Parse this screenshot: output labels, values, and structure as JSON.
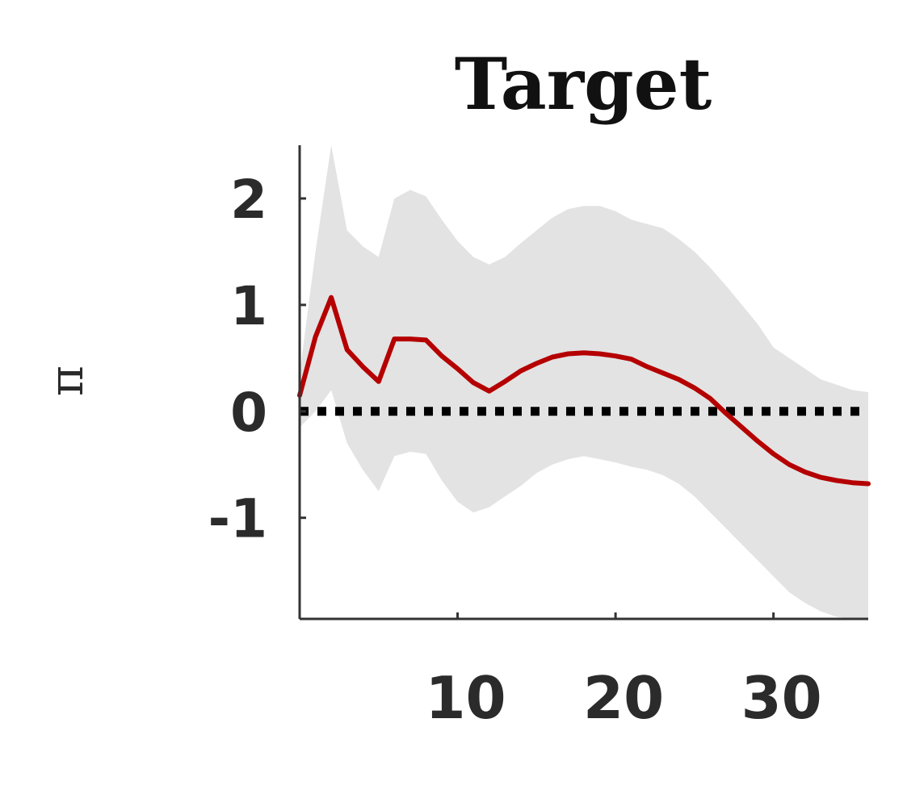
{
  "chart_data": {
    "type": "line",
    "title": "Target",
    "xlabel": "",
    "ylabel": "π",
    "xlim": [
      0,
      36
    ],
    "ylim": [
      -1.95,
      2.5
    ],
    "x_ticks": [
      10,
      20,
      30
    ],
    "x_tick_labels": [
      "10",
      "20",
      "30"
    ],
    "y_ticks": [
      -1,
      0,
      1,
      2
    ],
    "y_tick_labels": [
      "-1",
      "0",
      "1",
      "2"
    ],
    "grid": false,
    "colors": {
      "line": "#b50000",
      "band": "#e3e3e3",
      "zero_line": "#000000",
      "axis": "#333333"
    },
    "series": [
      {
        "x": [
          0,
          1,
          2,
          3,
          4,
          5,
          6,
          7,
          8,
          9,
          10,
          11,
          12,
          13,
          14,
          15,
          16,
          17,
          18,
          19,
          20,
          21,
          22,
          23,
          24,
          25,
          26,
          27,
          28,
          29,
          30,
          31,
          32,
          33,
          34,
          35,
          36
        ],
        "values": [
          0.15,
          0.7,
          1.07,
          0.58,
          0.42,
          0.28,
          0.68,
          0.68,
          0.67,
          0.52,
          0.4,
          0.27,
          0.19,
          0.28,
          0.38,
          0.45,
          0.51,
          0.54,
          0.55,
          0.54,
          0.52,
          0.49,
          0.42,
          0.36,
          0.3,
          0.22,
          0.12,
          -0.02,
          -0.15,
          -0.28,
          -0.4,
          -0.5,
          -0.57,
          -0.62,
          -0.65,
          -0.67,
          -0.68
        ]
      }
    ],
    "confidence_band": {
      "x": [
        0,
        1,
        2,
        3,
        4,
        5,
        6,
        7,
        8,
        9,
        10,
        11,
        12,
        13,
        14,
        15,
        16,
        17,
        18,
        19,
        20,
        21,
        22,
        23,
        24,
        25,
        26,
        27,
        28,
        29,
        30,
        31,
        32,
        33,
        34,
        35,
        36
      ],
      "upper": [
        0.35,
        1.5,
        2.5,
        1.7,
        1.55,
        1.45,
        2.0,
        2.08,
        2.02,
        1.8,
        1.6,
        1.45,
        1.38,
        1.45,
        1.58,
        1.7,
        1.82,
        1.9,
        1.93,
        1.93,
        1.88,
        1.8,
        1.76,
        1.72,
        1.62,
        1.5,
        1.35,
        1.18,
        1.0,
        0.82,
        0.6,
        0.5,
        0.4,
        0.3,
        0.25,
        0.2,
        0.18
      ],
      "lower": [
        -0.15,
        0.0,
        0.2,
        -0.3,
        -0.55,
        -0.75,
        -0.42,
        -0.38,
        -0.4,
        -0.65,
        -0.85,
        -0.95,
        -0.9,
        -0.8,
        -0.7,
        -0.58,
        -0.5,
        -0.45,
        -0.42,
        -0.45,
        -0.48,
        -0.52,
        -0.55,
        -0.6,
        -0.68,
        -0.8,
        -0.95,
        -1.1,
        -1.25,
        -1.4,
        -1.55,
        -1.7,
        -1.8,
        -1.88,
        -1.93,
        -1.95,
        -1.95
      ]
    },
    "reference_lines": [
      {
        "y": 0,
        "style": "dotted"
      }
    ]
  }
}
